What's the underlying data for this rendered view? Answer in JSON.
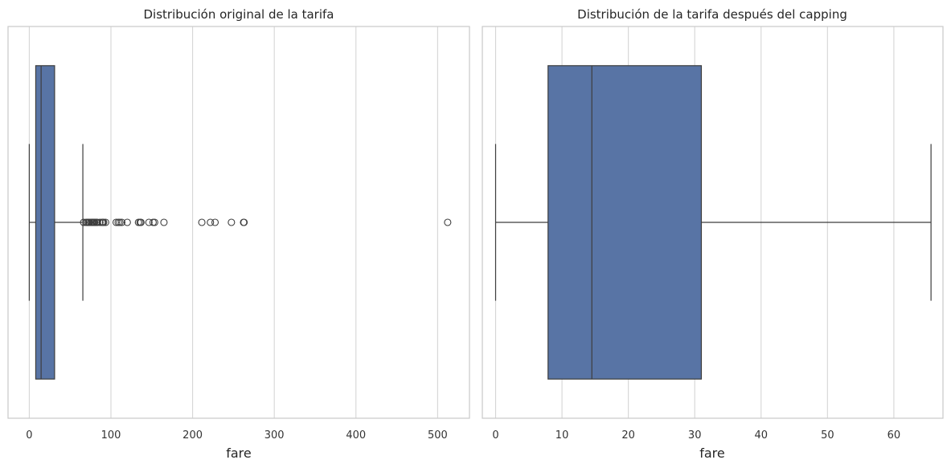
{
  "chart_data": [
    {
      "type": "box",
      "title": "Distribución original de la tarifa",
      "xlabel": "fare",
      "ylabel": "",
      "xlim": [
        -26,
        539
      ],
      "xticks": [
        0,
        100,
        200,
        300,
        400,
        500
      ],
      "grid": "vertical",
      "box_color": "#5874a5",
      "edge_color": "#3d3d3d",
      "stats": {
        "whisker_low": 0,
        "q1": 7.9,
        "median": 14.5,
        "q3": 31,
        "whisker_high": 65.6
      },
      "outliers": [
        66.6,
        69.5,
        71,
        72.5,
        73.5,
        75.3,
        76.7,
        77.3,
        78.3,
        79.2,
        79.7,
        80,
        81.9,
        82.2,
        83.2,
        86.5,
        89.1,
        90,
        91.1,
        93.5,
        106.4,
        108.9,
        110.9,
        113.3,
        120,
        133.7,
        135.6,
        136.8,
        146.5,
        151.6,
        153.5,
        164.9,
        211.3,
        221.8,
        227.5,
        247.5,
        262.4,
        263,
        512.3
      ]
    },
    {
      "type": "box",
      "title": "Distribución de la tarifa después del capping",
      "xlabel": "fare",
      "ylabel": "",
      "xlim": [
        -2.0,
        67.4
      ],
      "xticks": [
        0,
        10,
        20,
        30,
        40,
        50,
        60
      ],
      "grid": "vertical",
      "box_color": "#5874a5",
      "edge_color": "#3d3d3d",
      "stats": {
        "whisker_low": 0,
        "q1": 7.9,
        "median": 14.5,
        "q3": 31,
        "whisker_high": 65.6
      },
      "outliers": []
    }
  ]
}
